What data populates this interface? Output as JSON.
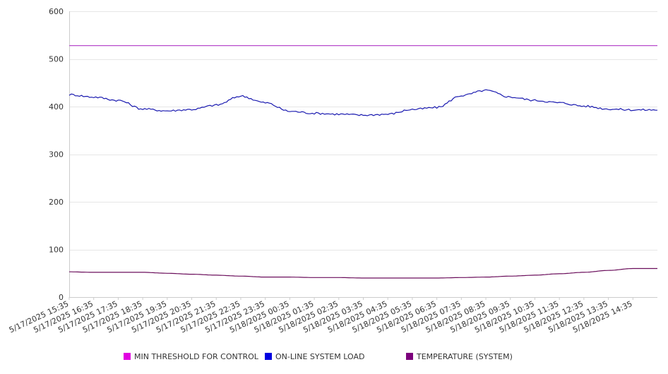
{
  "chart_data": {
    "type": "line",
    "title": "",
    "xlabel": "",
    "ylabel": "",
    "ylim": [
      0,
      600
    ],
    "yticks": [
      "0",
      "100",
      "200",
      "300",
      "400",
      "500",
      "600"
    ],
    "grid": true,
    "legend_position": "bottom",
    "x_categories": [
      "5/17/2025 15:35",
      "5/17/2025 16:35",
      "5/17/2025 17:35",
      "5/17/2025 18:35",
      "5/17/2025 19:35",
      "5/17/2025 20:35",
      "5/17/2025 21:35",
      "5/17/2025 22:35",
      "5/17/2025 23:35",
      "5/18/2025 00:35",
      "5/18/2025 01:35",
      "5/18/2025 02:35",
      "5/18/2025 03:35",
      "5/18/2025 04:35",
      "5/18/2025 05:35",
      "5/18/2025 06:35",
      "5/18/2025 07:35",
      "5/18/2025 08:35",
      "5/18/2025 09:35",
      "5/18/2025 10:35",
      "5/18/2025 11:35",
      "5/18/2025 12:35",
      "5/18/2025 13:35",
      "5/18/2025 14:35"
    ],
    "series": [
      {
        "name": "MIN THRESHOLD FOR CONTROL",
        "color": "#e100e1",
        "line_color": "#b84ccc",
        "values": [
          528,
          528,
          528,
          528,
          528,
          528,
          528,
          528,
          528,
          528,
          528,
          528,
          528,
          528,
          528,
          528,
          528,
          528,
          528,
          528,
          528,
          528,
          528,
          528
        ]
      },
      {
        "name": "ON-LINE SYSTEM LOAD",
        "color": "#0000e0",
        "line_color": "#1a1ab0",
        "values": [
          425,
          420,
          413,
          395,
          391,
          394,
          403,
          422,
          408,
          390,
          386,
          384,
          382,
          384,
          394,
          398,
          423,
          434,
          420,
          413,
          408,
          401,
          395,
          393
        ]
      },
      {
        "name": "TEMPERATURE (SYSTEM)",
        "color": "#7c007c",
        "line_color": "#6b0f5c",
        "values": [
          53,
          52,
          52,
          52,
          50,
          48,
          46,
          44,
          42,
          42,
          41,
          41,
          40,
          40,
          40,
          40,
          41,
          42,
          44,
          46,
          49,
          52,
          56,
          60
        ]
      }
    ]
  }
}
